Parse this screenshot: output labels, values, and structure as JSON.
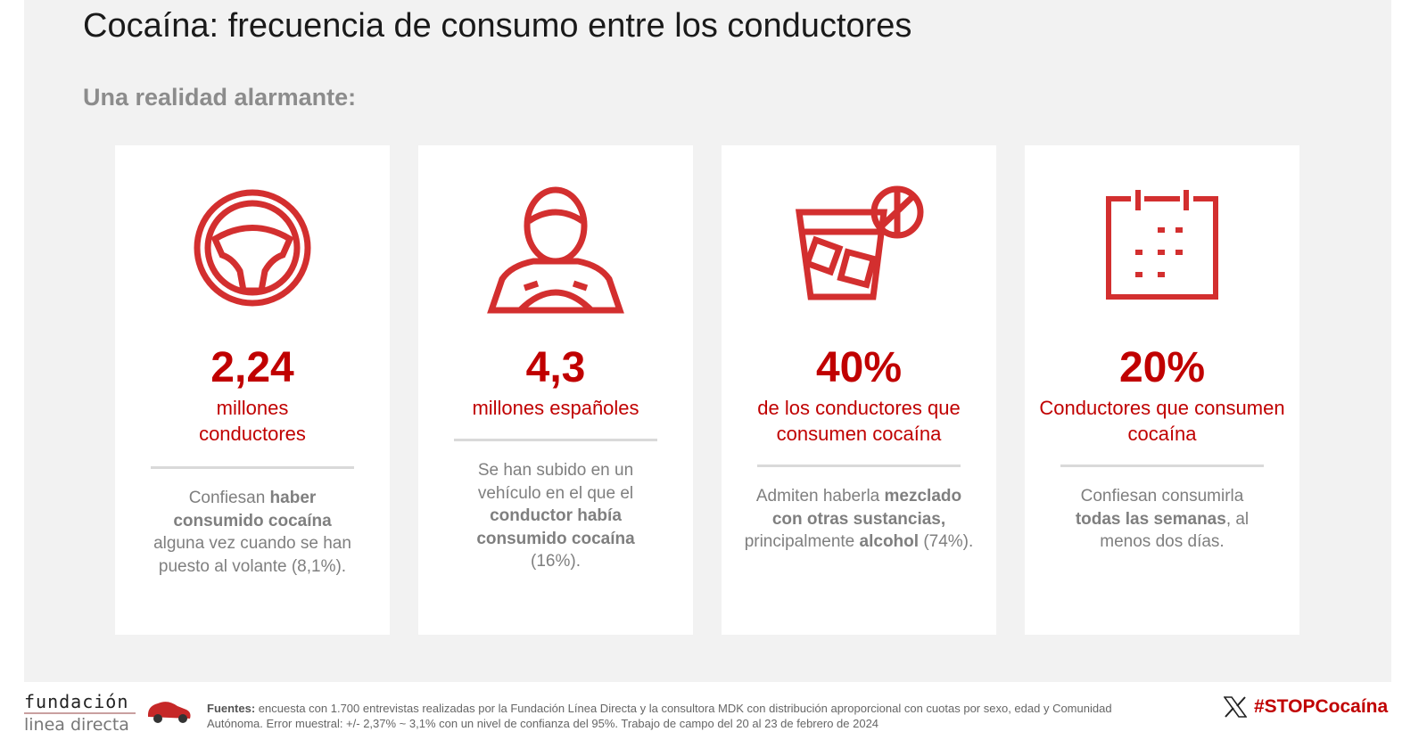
{
  "title": "Cocaína: frecuencia de consumo entre los conductores",
  "subtitle": "Una realidad alarmante:",
  "accent_color": "#c00000",
  "cards": [
    {
      "icon": "steering-wheel-icon",
      "number": "2,24",
      "unit": "millones conductores",
      "desc": [
        [
          "Confiesan ",
          false
        ],
        [
          "haber consumido cocaína",
          true
        ],
        [
          " alguna vez cuando se han puesto al volante (8,1%).",
          false
        ]
      ]
    },
    {
      "icon": "driver-icon",
      "number": "4,3",
      "unit": "millones españoles",
      "desc": [
        [
          "Se han subido en un vehículo en el que el ",
          false
        ],
        [
          "conductor había consumido cocaína",
          true
        ],
        [
          " (16%).",
          false
        ]
      ]
    },
    {
      "icon": "drink-glass-icon",
      "number": "40%",
      "unit": "de los conductores que consumen cocaína",
      "desc": [
        [
          "Admiten haberla ",
          false
        ],
        [
          "mezclado con otras sustancias,",
          true
        ],
        [
          " principalmente ",
          false
        ],
        [
          "alcohol",
          true
        ],
        [
          " (74%).",
          false
        ]
      ]
    },
    {
      "icon": "calendar-icon",
      "number": "20%",
      "unit": "Conductores que consumen cocaína",
      "desc": [
        [
          "Confiesan consumirla ",
          false
        ],
        [
          "todas las semanas",
          true
        ],
        [
          ", al menos dos días.",
          false
        ]
      ]
    }
  ],
  "footer": {
    "logo_line1": "fundación",
    "logo_line2": "linea directa",
    "sources_label": "Fuentes:",
    "sources_text": " encuesta con 1.700 entrevistas realizadas por la Fundación Línea Directa y la consultora MDK con distribución aproporcional con cuotas por sexo, edad y Comunidad Autónoma. Error muestral: +/- 2,37% ~ 3,1% con un nivel de confianza del 95%. Trabajo de campo del 20 al 23 de febrero de 2024",
    "hashtag": "#STOPCocaína"
  }
}
